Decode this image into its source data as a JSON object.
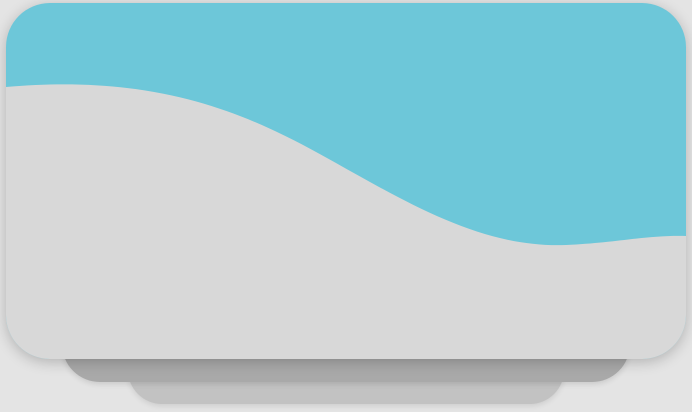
{
  "card": {
    "label": "",
    "top_color": "#6dc7d9",
    "bottom_color": "#d8d8d8"
  },
  "stack": {
    "middle_color": "#a9a9a9",
    "back_color": "#c2c2c2"
  }
}
